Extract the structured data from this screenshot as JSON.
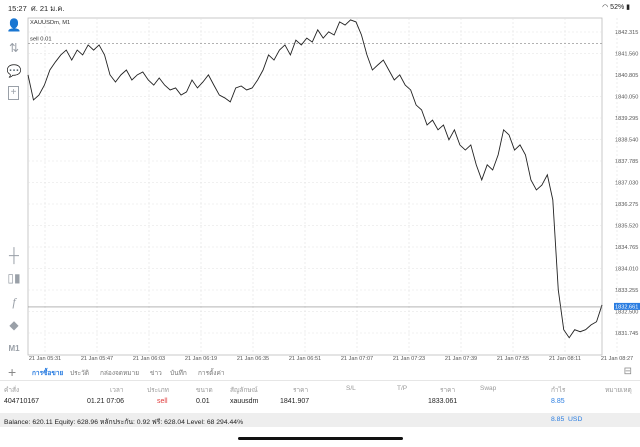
{
  "status_bar": {
    "time": "15:27",
    "date": "ศ. 21 ม.ค.",
    "battery": "52%"
  },
  "sidebar": {
    "icons": [
      "account-icon",
      "trade-icon",
      "chat-icon",
      "new-document-icon",
      "crosshair-icon",
      "candlestick-icon",
      "indicator-icon",
      "objects-icon"
    ],
    "timeframe": "M1"
  },
  "chart": {
    "symbol_label": "XAUUSDm, M1",
    "order_line_label": "sell 0.01",
    "order_price": 1841.907,
    "current_price_label": "1832.661",
    "current_price": 1832.661,
    "accent": "#2a7de1"
  },
  "chart_data": {
    "type": "line",
    "ylim": [
      1831.3,
      1843.2
    ],
    "y_ticks": [
      "1842.315",
      "1841.560",
      "1840.805",
      "1840.050",
      "1839.295",
      "1838.540",
      "1837.785",
      "1837.030",
      "1836.275",
      "1835.520",
      "1834.765",
      "1834.010",
      "1833.255",
      "1832.500",
      "1831.745"
    ],
    "x_ticks": [
      "21 Jan 05:31",
      "21 Jan 05:47",
      "21 Jan 06:03",
      "21 Jan 06:19",
      "21 Jan 06:35",
      "21 Jan 06:51",
      "21 Jan 07:07",
      "21 Jan 07:23",
      "21 Jan 07:39",
      "21 Jan 07:55",
      "21 Jan 08:11",
      "21 Jan 08:27"
    ],
    "values": [
      1840.81,
      1839.93,
      1840.1,
      1840.45,
      1840.98,
      1841.26,
      1841.51,
      1841.68,
      1841.33,
      1841.68,
      1841.51,
      1841.86,
      1841.68,
      1841.86,
      1841.51,
      1840.81,
      1840.56,
      1840.81,
      1840.98,
      1840.63,
      1840.81,
      1840.91,
      1840.63,
      1840.45,
      1840.7,
      1840.45,
      1840.28,
      1840.35,
      1840.1,
      1840.21,
      1840.63,
      1840.35,
      1840.56,
      1840.81,
      1840.45,
      1840.1,
      1840.0,
      1839.86,
      1840.35,
      1840.42,
      1840.28,
      1840.35,
      1840.63,
      1840.98,
      1841.51,
      1841.33,
      1841.68,
      1841.86,
      1841.51,
      1842.03,
      1841.86,
      1842.1,
      1841.96,
      1842.39,
      1842.1,
      1842.32,
      1842.21,
      1842.67,
      1842.56,
      1842.74,
      1842.67,
      1842.21,
      1841.51,
      1840.98,
      1841.16,
      1841.33,
      1840.98,
      1840.63,
      1840.81,
      1840.45,
      1840.28,
      1839.75,
      1839.58,
      1839.05,
      1839.22,
      1838.88,
      1839.05,
      1838.53,
      1838.88,
      1838.35,
      1838.17,
      1838.35,
      1837.65,
      1837.12,
      1837.65,
      1837.47,
      1838.0,
      1838.88,
      1838.7,
      1838.17,
      1838.35,
      1838.0,
      1837.12,
      1836.77,
      1836.94,
      1837.3,
      1836.42,
      1833.26,
      1831.86,
      1831.58,
      1831.86,
      1831.79,
      1831.86,
      1832.03,
      1832.14,
      1832.73
    ]
  },
  "tabs": [
    {
      "label": "การซื้อขาย",
      "active": true
    },
    {
      "label": "ประวัติ"
    },
    {
      "label": "กล่องจดหมาย"
    },
    {
      "label": "ข่าว"
    },
    {
      "label": "บันทึก"
    },
    {
      "label": "การตั้งค่า"
    }
  ],
  "table": {
    "headers": [
      "คำสั่ง",
      "เวลา",
      "ประเภท",
      "ขนาด",
      "สัญลักษณ์",
      "ราคา",
      "S/L",
      "T/P",
      "ราคา",
      "Swap",
      "กำไร",
      "หมายเหตุ"
    ],
    "rows": [
      {
        "order": "404710167",
        "time": "01.21 07:06",
        "type": "sell",
        "size": "0.01",
        "symbol": "xauusdm",
        "price": "1841.907",
        "sl": "",
        "tp": "",
        "current": "1833.061",
        "swap": "",
        "profit": "8.85",
        "comment": ""
      }
    ]
  },
  "balance": {
    "text": "Balance: 620.11 Equity: 628.96 หลักประกัน: 0.92 ฟรี: 628.04 Level: 68 294.44%",
    "profit": "8.85",
    "currency": "USD"
  }
}
